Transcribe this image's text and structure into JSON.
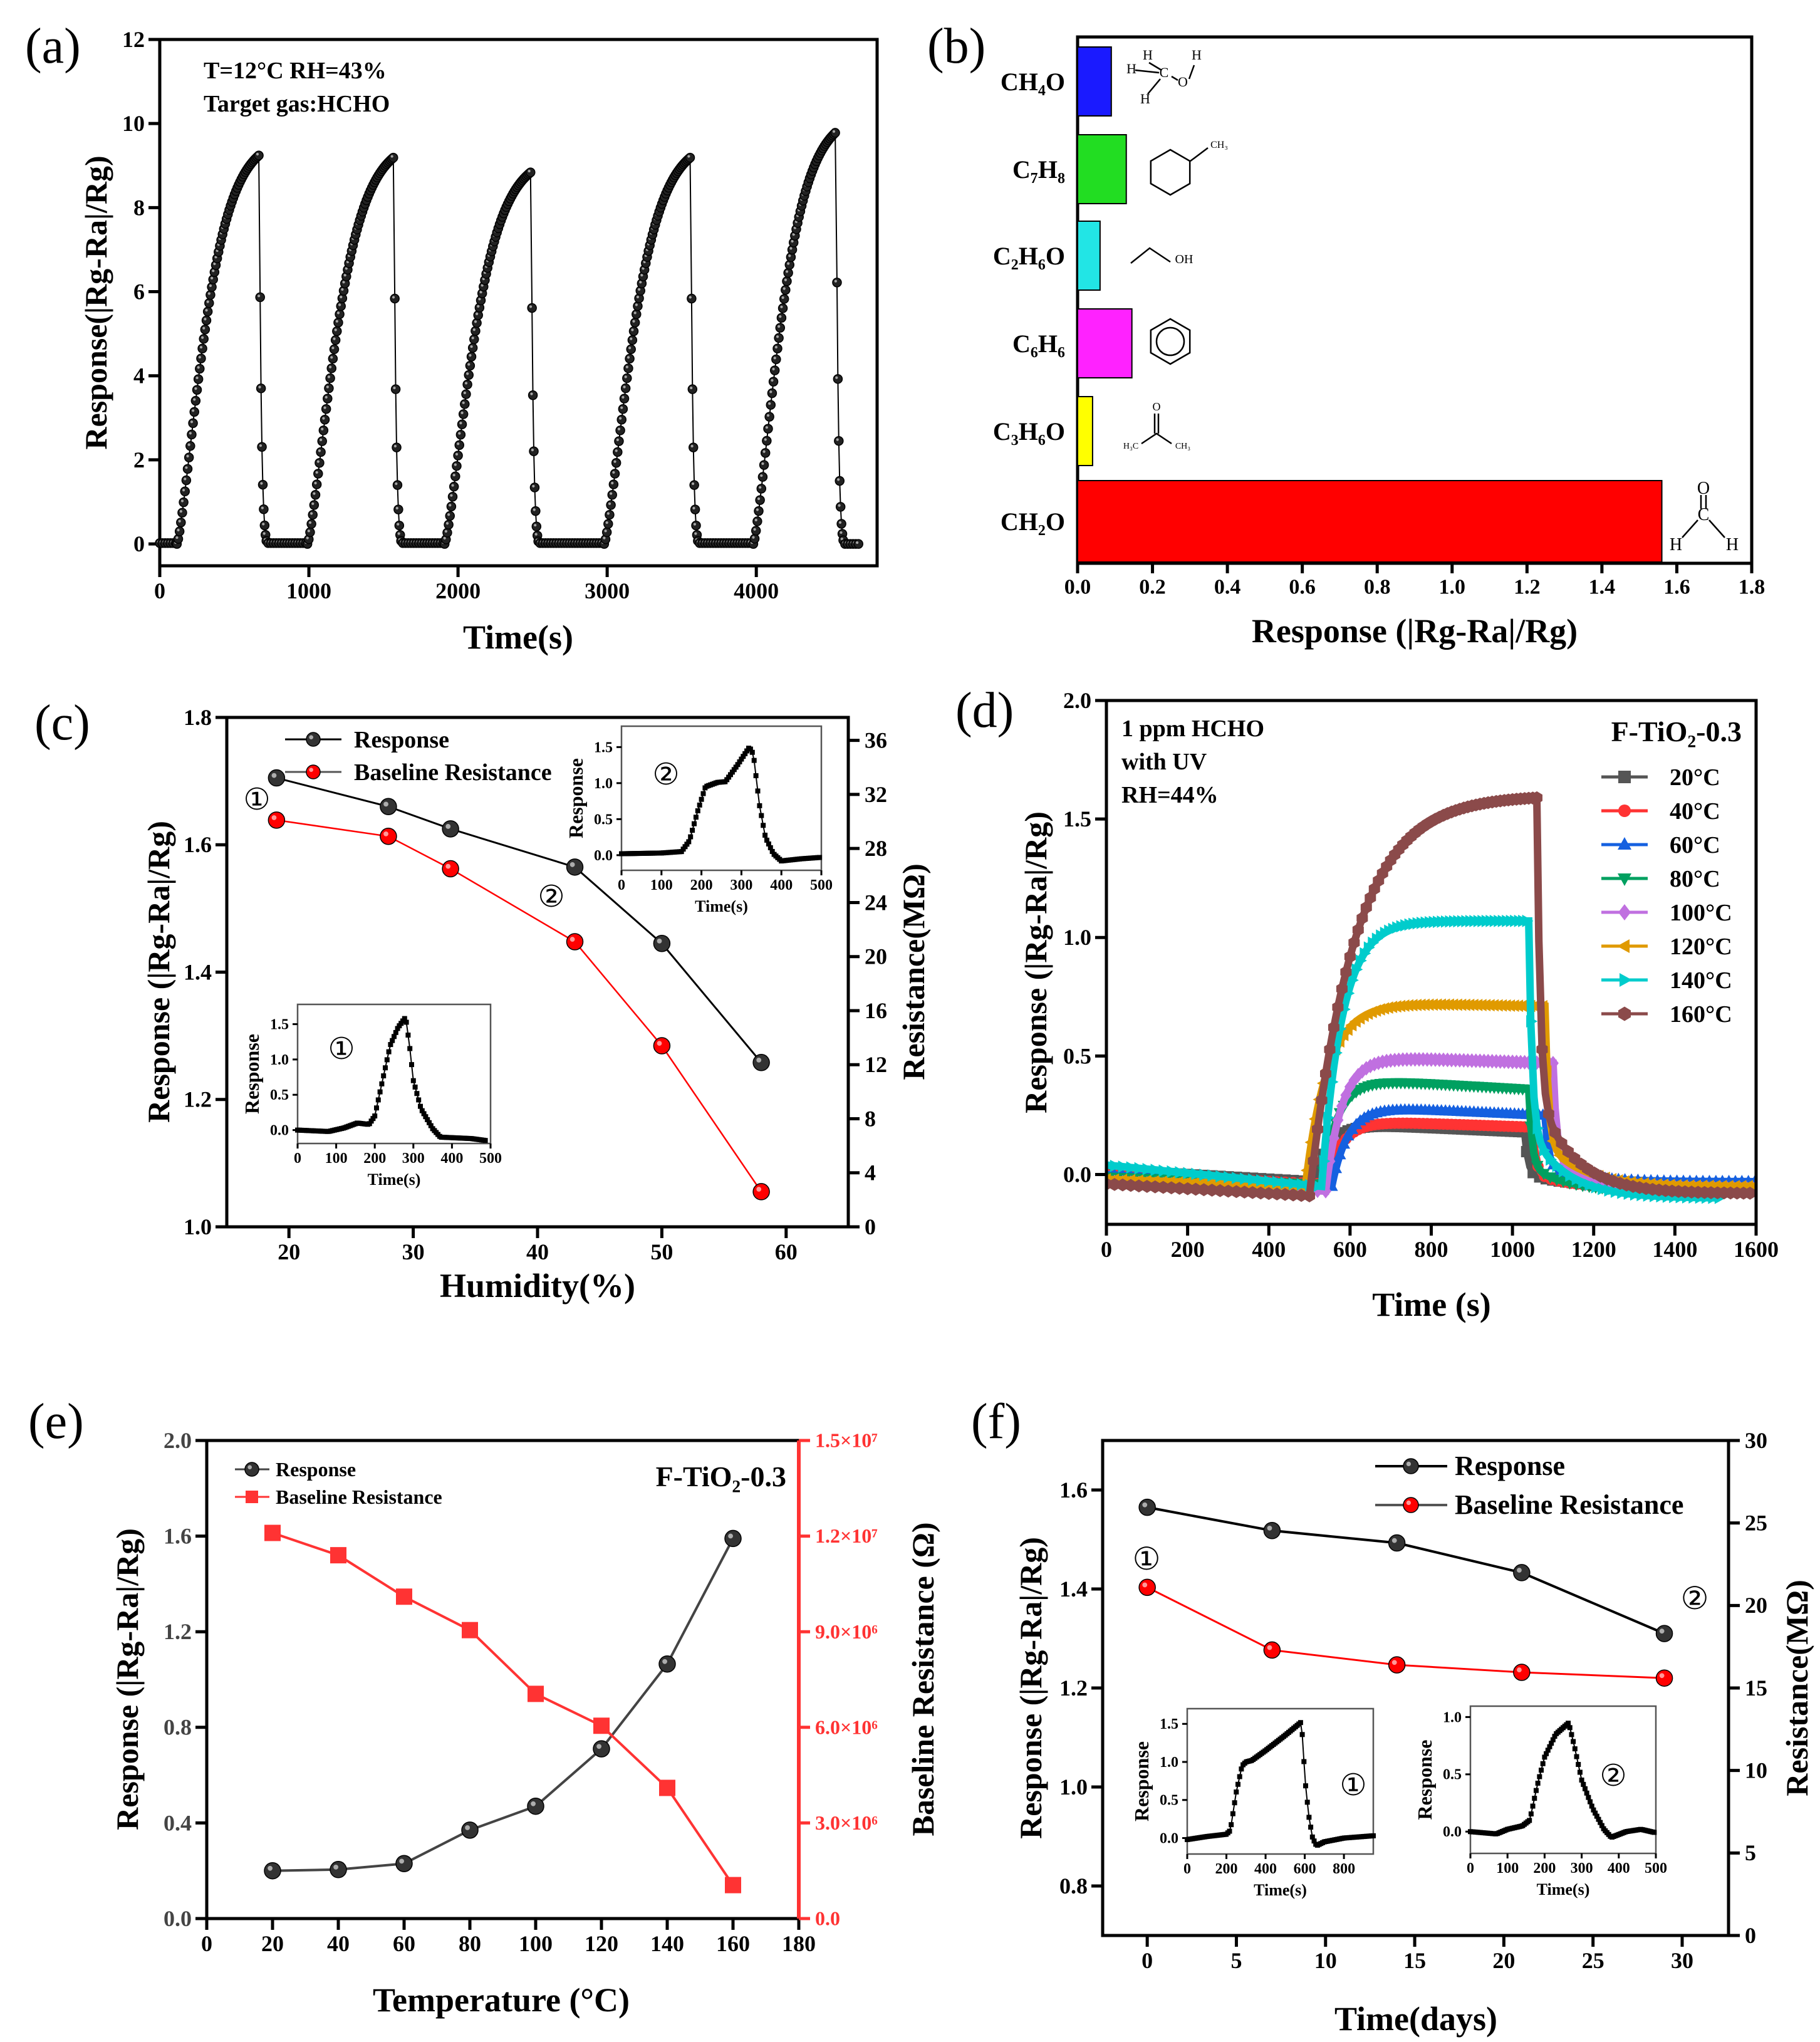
{
  "chart_data": [
    {
      "panel": "(a)",
      "type": "line",
      "xlabel": "Time(s)",
      "ylabel": "Response(|Rg-Ra|/Rg)",
      "xlim": [
        0,
        4810
      ],
      "ylim": [
        -0.52,
        12
      ],
      "xticks": [
        0,
        1000,
        2000,
        3000,
        4000
      ],
      "yticks": [
        0,
        2,
        4,
        6,
        8,
        10,
        12
      ],
      "annotations": [
        "T=12°C RH=43%",
        "Target gas:HCHO"
      ],
      "end_time": 4700,
      "cycles": [
        {
          "gas_on": 115,
          "gas_off": 667,
          "peak": 9.25
        },
        {
          "gas_on": 990,
          "gas_off": 1570,
          "peak": 9.2
        },
        {
          "gas_on": 1910,
          "gas_off": 2490,
          "peak": 8.85
        },
        {
          "gas_on": 2980,
          "gas_off": 3560,
          "peak": 9.2
        },
        {
          "gas_on": 3980,
          "gas_off": 4535,
          "peak": 9.8
        }
      ]
    },
    {
      "panel": "(b)",
      "type": "bar",
      "orientation": "horizontal",
      "xlabel": "Response (|Rg-Ra|/Rg)",
      "xlim": [
        0,
        1.8
      ],
      "xticks": [
        0.0,
        0.2,
        0.4,
        0.6,
        0.8,
        1.0,
        1.2,
        1.4,
        1.6,
        1.8
      ],
      "categories": [
        "CH₄O",
        "C₇H₈",
        "C₂H₆O",
        "C₆H₆",
        "C₃H₆O",
        "CH₂O"
      ],
      "values": [
        0.09,
        0.13,
        0.06,
        0.145,
        0.04,
        1.56
      ],
      "colors": [
        "#1a1aff",
        "#22dd22",
        "#22e5e5",
        "#ff22ff",
        "#ffff00",
        "#ff0000"
      ],
      "structure_labels": {
        "H": "H",
        "C": "C",
        "O": "O",
        "OH": "OH",
        "CH3": "CH₃",
        "H3C": "H₃C"
      }
    },
    {
      "panel": "(c)",
      "type": "line",
      "xlabel": "Humidity(%)",
      "ylabel": "Response (|Rg-Ra|/Rg)",
      "y2label": "Resistance(MΩ)",
      "xlim": [
        15,
        65
      ],
      "ylim": [
        1.0,
        1.8
      ],
      "y2lim": [
        0,
        37.7
      ],
      "xticks": [
        20,
        30,
        40,
        50,
        60
      ],
      "yticks": [
        1.0,
        1.2,
        1.4,
        1.6,
        1.8
      ],
      "y2ticks": [
        0,
        4,
        8,
        12,
        16,
        20,
        24,
        28,
        32,
        36
      ],
      "x": [
        19,
        28,
        33,
        43,
        50,
        58
      ],
      "series": [
        {
          "name": "Response",
          "axis": "left",
          "color": "#000000",
          "values": [
            1.705,
            1.66,
            1.625,
            1.565,
            1.445,
            1.258
          ]
        },
        {
          "name": "Baseline Resistance",
          "axis": "right",
          "color": "#ff0000",
          "values": [
            30.1,
            28.9,
            26.5,
            21.1,
            13.4,
            2.6
          ]
        }
      ],
      "markers": [
        "①",
        "②"
      ],
      "insets": [
        {
          "label": "②",
          "xlabel": "Time(s)",
          "ylabel": "Response",
          "xlim": [
            0,
            500
          ],
          "ylim": [
            -0.21,
            1.79
          ],
          "xticks": [
            0,
            100,
            200,
            300,
            400,
            500
          ],
          "yticks": [
            0.0,
            0.5,
            1.0,
            1.5
          ],
          "points": [
            [
              0,
              0.02
            ],
            [
              100,
              0.03
            ],
            [
              150,
              0.05
            ],
            [
              170,
              0.2
            ],
            [
              190,
              0.6
            ],
            [
              210,
              0.95
            ],
            [
              240,
              1.01
            ],
            [
              260,
              1.02
            ],
            [
              290,
              1.25
            ],
            [
              320,
              1.5
            ],
            [
              330,
              1.4
            ],
            [
              345,
              0.7
            ],
            [
              360,
              0.25
            ],
            [
              380,
              0.02
            ],
            [
              400,
              -0.08
            ],
            [
              450,
              -0.05
            ],
            [
              500,
              -0.03
            ]
          ]
        },
        {
          "label": "①",
          "xlabel": "Time(s)",
          "ylabel": "Response",
          "xlim": [
            0,
            500
          ],
          "ylim": [
            -0.19,
            1.78
          ],
          "xticks": [
            0,
            100,
            200,
            300,
            400,
            500
          ],
          "yticks": [
            0.0,
            0.5,
            1.0,
            1.5
          ],
          "points": [
            [
              0,
              0
            ],
            [
              80,
              -0.02
            ],
            [
              120,
              0.03
            ],
            [
              155,
              0.1
            ],
            [
              185,
              0.08
            ],
            [
              200,
              0.2
            ],
            [
              220,
              0.7
            ],
            [
              240,
              1.2
            ],
            [
              260,
              1.45
            ],
            [
              280,
              1.6
            ],
            [
              290,
              1.2
            ],
            [
              300,
              0.7
            ],
            [
              320,
              0.3
            ],
            [
              350,
              0.02
            ],
            [
              370,
              -0.1
            ],
            [
              450,
              -0.12
            ],
            [
              490,
              -0.15
            ]
          ]
        }
      ]
    },
    {
      "panel": "(d)",
      "type": "line",
      "xlabel": "Time (s)",
      "ylabel": "Response (|Rg-Ra|/Rg)",
      "xlim": [
        0,
        1600
      ],
      "ylim": [
        -0.21,
        2.0
      ],
      "xticks": [
        0,
        200,
        400,
        600,
        800,
        1000,
        1200,
        1400,
        1600
      ],
      "yticks": [
        0.0,
        0.5,
        1.0,
        1.5,
        2.0
      ],
      "annotations": [
        "1 ppm HCHO",
        "with UV",
        "RH=44%"
      ],
      "sample_label": "F-TiO₂-0.3",
      "series": [
        {
          "name": "20°C",
          "color": "#555555",
          "marker": "square",
          "gas_on": 510,
          "gas_off": 1030,
          "baseline": [
            0.02,
            -0.03
          ],
          "plateau": [
            0.22,
            0.18
          ],
          "tau": 40,
          "end": 1600,
          "tail": -0.05
        },
        {
          "name": "40°C",
          "color": "#ff3333",
          "marker": "circle",
          "gas_on": 540,
          "gas_off": 1050,
          "baseline": [
            0.0,
            -0.04
          ],
          "plateau": [
            0.23,
            0.2
          ],
          "tau": 40,
          "end": 1600,
          "tail": -0.06
        },
        {
          "name": "60°C",
          "color": "#1560e0",
          "marker": "triangle-up",
          "gas_on": 555,
          "gas_off": 1080,
          "baseline": [
            0.0,
            -0.05
          ],
          "plateau": [
            0.29,
            0.25
          ],
          "tau": 40,
          "end": 1600,
          "tail": -0.03
        },
        {
          "name": "80°C",
          "color": "#00a060",
          "marker": "triangle-down",
          "gas_on": 530,
          "gas_off": 1040,
          "baseline": [
            -0.01,
            -0.04
          ],
          "plateau": [
            0.41,
            0.36
          ],
          "tau": 40,
          "end": 1600,
          "tail": -0.07
        },
        {
          "name": "100°C",
          "color": "#c070e0",
          "marker": "diamond",
          "gas_on": 540,
          "gas_off": 1100,
          "baseline": [
            -0.03,
            -0.07
          ],
          "plateau": [
            0.5,
            0.47
          ],
          "tau": 40,
          "end": 1600,
          "tail": -0.06
        },
        {
          "name": "120°C",
          "color": "#e09a00",
          "marker": "triangle-left",
          "gas_on": 490,
          "gas_off": 1080,
          "baseline": [
            -0.02,
            -0.05
          ],
          "plateau": [
            0.73,
            0.71
          ],
          "tau": 55,
          "end": 1600,
          "tail": -0.05
        },
        {
          "name": "140°C",
          "color": "#00cccc",
          "marker": "triangle-right",
          "gas_on": 530,
          "gas_off": 1040,
          "baseline": [
            0.04,
            -0.05
          ],
          "plateau": [
            1.07,
            1.07
          ],
          "tau": 50,
          "end": 1510,
          "tail": -0.1
        },
        {
          "name": "160°C",
          "color": "#8b4a4a",
          "marker": "hexagon",
          "gas_on": 500,
          "gas_off": 1060,
          "baseline": [
            -0.04,
            -0.09
          ],
          "plateau": [
            1.6,
            1.6
          ],
          "tau": 110,
          "end": 1600,
          "tail": -0.08
        }
      ]
    },
    {
      "panel": "(e)",
      "type": "line",
      "xlabel": "Temperature (°C)",
      "ylabel": "Response (|Rg-Ra|/Rg)",
      "y2label": "Baseline Resistance (Ω)",
      "xlim": [
        0,
        180
      ],
      "ylim": [
        0,
        2.0
      ],
      "y2lim": [
        0,
        15000000
      ],
      "xticks": [
        0,
        20,
        40,
        60,
        80,
        100,
        120,
        140,
        160,
        180
      ],
      "yticks": [
        0.0,
        0.4,
        0.8,
        1.2,
        1.6,
        2.0
      ],
      "y2ticks": [
        "0.0",
        "3.0×10⁶",
        "6.0×10⁶",
        "9.0×10⁶",
        "1.2×10⁷",
        "1.5×10⁷"
      ],
      "y2tick_values": [
        0,
        3000000,
        6000000,
        9000000,
        12000000,
        15000000
      ],
      "sample_label": "F-TiO₂-0.3",
      "x": [
        20,
        40,
        60,
        80,
        100,
        120,
        140,
        160
      ],
      "series": [
        {
          "name": "Response",
          "axis": "left",
          "color": "#444444",
          "values": [
            0.2,
            0.205,
            0.23,
            0.37,
            0.47,
            0.71,
            1.065,
            1.59
          ]
        },
        {
          "name": "Baseline Resistance",
          "axis": "right",
          "color": "#ff3333",
          "values": [
            12100000,
            11400000,
            10100000,
            9050000,
            7050000,
            6050000,
            4100000,
            1050000
          ]
        }
      ]
    },
    {
      "panel": "(f)",
      "type": "line",
      "xlabel": "Time(days)",
      "ylabel": "Response (|Rg-Ra|/Rg)",
      "y2label": "Resistance(MΩ)",
      "xlim": [
        -2.5,
        32.6
      ],
      "ylim": [
        0.7,
        1.7
      ],
      "y2lim": [
        0,
        30
      ],
      "xticks": [
        0,
        5,
        10,
        15,
        20,
        25,
        30
      ],
      "yticks": [
        0.8,
        1.0,
        1.2,
        1.4,
        1.6
      ],
      "y2ticks": [
        0,
        5,
        10,
        15,
        20,
        25,
        30
      ],
      "x": [
        0,
        7,
        14,
        21,
        29
      ],
      "series": [
        {
          "name": "Response",
          "axis": "left",
          "color": "#000000",
          "values": [
            1.565,
            1.518,
            1.493,
            1.433,
            1.31
          ]
        },
        {
          "name": "Baseline Resistance",
          "axis": "right",
          "color": "#ff0000",
          "values": [
            21.1,
            17.3,
            16.4,
            15.95,
            15.6
          ]
        }
      ],
      "markers": [
        "①",
        "②"
      ],
      "insets": [
        {
          "label": "①",
          "xlabel": "Time(s)",
          "ylabel": "Response",
          "xlim": [
            0,
            950
          ],
          "ylim": [
            -0.21,
            1.7
          ],
          "xticks": [
            0,
            200,
            400,
            600,
            800
          ],
          "yticks": [
            0.0,
            0.5,
            1.0,
            1.5
          ],
          "points": [
            [
              0,
              -0.02
            ],
            [
              100,
              0.02
            ],
            [
              200,
              0.05
            ],
            [
              220,
              0.1
            ],
            [
              250,
              0.6
            ],
            [
              280,
              0.95
            ],
            [
              300,
              1.0
            ],
            [
              330,
              1.02
            ],
            [
              400,
              1.15
            ],
            [
              500,
              1.35
            ],
            [
              580,
              1.52
            ],
            [
              590,
              1.3
            ],
            [
              600,
              0.8
            ],
            [
              620,
              0.3
            ],
            [
              640,
              0.0
            ],
            [
              660,
              -0.1
            ],
            [
              700,
              -0.05
            ],
            [
              800,
              0.0
            ],
            [
              950,
              0.03
            ]
          ]
        },
        {
          "label": "②",
          "xlabel": "Time(s)",
          "ylabel": "Response",
          "xlim": [
            0,
            500
          ],
          "ylim": [
            -0.19,
            1.095
          ],
          "xticks": [
            0,
            100,
            200,
            300,
            400,
            500
          ],
          "yticks": [
            0.0,
            0.5,
            1.0
          ],
          "points": [
            [
              0,
              0
            ],
            [
              70,
              -0.02
            ],
            [
              100,
              0.02
            ],
            [
              140,
              0.05
            ],
            [
              160,
              0.1
            ],
            [
              180,
              0.4
            ],
            [
              200,
              0.65
            ],
            [
              230,
              0.85
            ],
            [
              265,
              0.95
            ],
            [
              280,
              0.75
            ],
            [
              300,
              0.45
            ],
            [
              330,
              0.2
            ],
            [
              360,
              0.02
            ],
            [
              380,
              -0.05
            ],
            [
              420,
              0
            ],
            [
              460,
              0.02
            ],
            [
              500,
              -0.01
            ]
          ]
        }
      ]
    }
  ]
}
